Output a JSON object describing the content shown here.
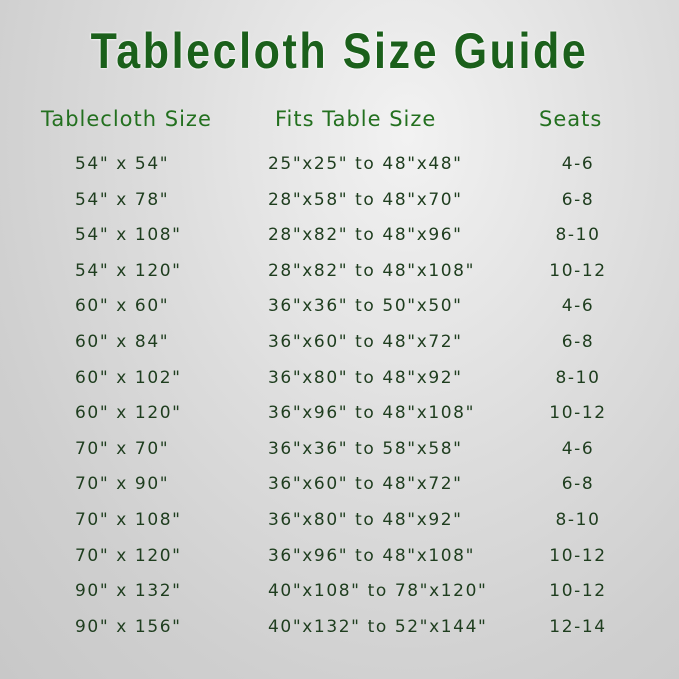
{
  "title": "Tablecloth Size Guide",
  "headers": {
    "size": "Tablecloth Size",
    "fits": "Fits Table Size",
    "seats": "Seats"
  },
  "colors": {
    "title": "#1b601b",
    "header": "#23701f",
    "text": "#1e3d1e"
  },
  "rows": [
    {
      "size": "54\" x 54\"",
      "fits": "25\"x25\" to 48\"x48\"",
      "seats": "4-6"
    },
    {
      "size": "54\" x 78\"",
      "fits": "28\"x58\" to 48\"x70\"",
      "seats": "6-8"
    },
    {
      "size": "54\" x 108\"",
      "fits": "28\"x82\" to 48\"x96\"",
      "seats": "8-10"
    },
    {
      "size": "54\" x 120\"",
      "fits": "28\"x82\" to 48\"x108\"",
      "seats": "10-12"
    },
    {
      "size": "60\" x 60\"",
      "fits": "36\"x36\" to 50\"x50\"",
      "seats": "4-6"
    },
    {
      "size": "60\" x 84\"",
      "fits": "36\"x60\" to 48\"x72\"",
      "seats": "6-8"
    },
    {
      "size": "60\" x 102\"",
      "fits": "36\"x80\" to 48\"x92\"",
      "seats": "8-10"
    },
    {
      "size": "60\" x 120\"",
      "fits": "36\"x96\" to 48\"x108\"",
      "seats": "10-12"
    },
    {
      "size": "70\" x 70\"",
      "fits": "36\"x36\" to 58\"x58\"",
      "seats": "4-6"
    },
    {
      "size": "70\" x 90\"",
      "fits": "36\"x60\" to 48\"x72\"",
      "seats": "6-8"
    },
    {
      "size": "70\" x 108\"",
      "fits": "36\"x80\" to 48\"x92\"",
      "seats": "8-10"
    },
    {
      "size": "70\" x 120\"",
      "fits": "36\"x96\" to 48\"x108\"",
      "seats": "10-12"
    },
    {
      "size": "90\" x 132\"",
      "fits": "40\"x108\" to 78\"x120\"",
      "seats": "10-12"
    },
    {
      "size": "90\" x 156\"",
      "fits": "40\"x132\" to 52\"x144\"",
      "seats": "12-14"
    }
  ]
}
